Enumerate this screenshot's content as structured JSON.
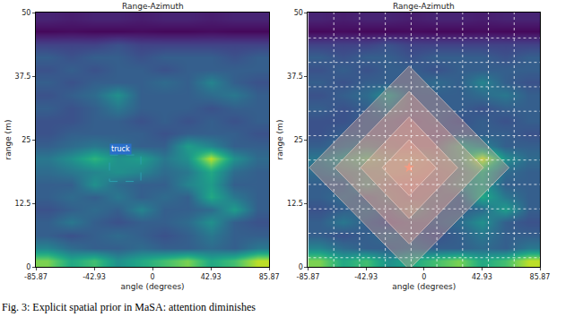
{
  "caption": "Fig. 3: Explicit spatial prior in MaSA: attention diminishes",
  "chart_data": [
    {
      "type": "heatmap",
      "title": "Range-Azimuth",
      "x_label": "angle (degrees)",
      "y_label": "range (m)",
      "color": "Viridis",
      "zlim": [
        0,
        1
      ],
      "xlim": [
        -85.87,
        85.87
      ],
      "xticks": [
        -85.87,
        -42.93,
        0,
        42.93,
        85.87
      ],
      "ylim": [
        0,
        50
      ],
      "yticks": [
        0,
        12.5,
        25,
        37.5,
        50
      ],
      "x": [
        -77.28,
        -60.11,
        -42.93,
        -25.76,
        -8.59,
        8.59,
        25.76,
        42.93,
        60.11,
        77.28
      ],
      "y": [
        1.25,
        3.75,
        6.25,
        8.75,
        11.25,
        13.75,
        16.25,
        18.75,
        21.25,
        23.75,
        26.25,
        28.75,
        31.25,
        33.75,
        36.25,
        38.75,
        41.25,
        43.75,
        46.25,
        48.75
      ],
      "cells": [
        [
          0.8,
          0.6,
          0.7,
          0.5,
          0.6,
          0.7,
          0.8,
          0.6,
          0.7,
          0.9
        ],
        [
          0.45,
          0.35,
          0.3,
          0.3,
          0.35,
          0.3,
          0.3,
          0.35,
          0.3,
          0.4
        ],
        [
          0.3,
          0.25,
          0.3,
          0.35,
          0.3,
          0.25,
          0.3,
          0.4,
          0.3,
          0.3
        ],
        [
          0.3,
          0.4,
          0.3,
          0.25,
          0.3,
          0.3,
          0.35,
          0.5,
          0.3,
          0.25
        ],
        [
          0.25,
          0.3,
          0.35,
          0.3,
          0.45,
          0.3,
          0.3,
          0.35,
          0.55,
          0.3
        ],
        [
          0.3,
          0.35,
          0.3,
          0.4,
          0.3,
          0.35,
          0.3,
          0.6,
          0.4,
          0.3
        ],
        [
          0.3,
          0.3,
          0.5,
          0.35,
          0.3,
          0.3,
          0.45,
          0.55,
          0.3,
          0.3
        ],
        [
          0.35,
          0.4,
          0.45,
          0.5,
          0.45,
          0.35,
          0.4,
          0.6,
          0.35,
          0.3
        ],
        [
          0.4,
          0.5,
          0.65,
          0.5,
          0.55,
          0.4,
          0.5,
          0.9,
          0.5,
          0.35
        ],
        [
          0.3,
          0.35,
          0.4,
          0.35,
          0.3,
          0.3,
          0.55,
          0.45,
          0.3,
          0.3
        ],
        [
          0.25,
          0.3,
          0.3,
          0.3,
          0.3,
          0.25,
          0.3,
          0.3,
          0.3,
          0.25
        ],
        [
          0.25,
          0.25,
          0.3,
          0.3,
          0.25,
          0.3,
          0.25,
          0.3,
          0.25,
          0.3
        ],
        [
          0.3,
          0.25,
          0.3,
          0.4,
          0.3,
          0.3,
          0.3,
          0.25,
          0.3,
          0.3
        ],
        [
          0.25,
          0.3,
          0.35,
          0.5,
          0.3,
          0.3,
          0.3,
          0.35,
          0.4,
          0.3
        ],
        [
          0.3,
          0.25,
          0.3,
          0.3,
          0.3,
          0.35,
          0.3,
          0.45,
          0.3,
          0.25
        ],
        [
          0.25,
          0.3,
          0.25,
          0.3,
          0.3,
          0.25,
          0.3,
          0.3,
          0.3,
          0.3
        ],
        [
          0.3,
          0.25,
          0.3,
          0.3,
          0.25,
          0.3,
          0.3,
          0.3,
          0.25,
          0.3
        ],
        [
          0.2,
          0.2,
          0.2,
          0.25,
          0.2,
          0.2,
          0.2,
          0.2,
          0.2,
          0.2
        ],
        [
          0.02,
          0.03,
          0.02,
          0.02,
          0.03,
          0.02,
          0.02,
          0.03,
          0.02,
          0.02
        ],
        [
          0.1,
          0.08,
          0.1,
          0.1,
          0.08,
          0.1,
          0.1,
          0.08,
          0.1,
          0.1
        ]
      ],
      "boxes": [
        {
          "text": "truck",
          "x0": -31.7,
          "x1": -8.6,
          "y0": 16.8,
          "y1": 22
        }
      ]
    },
    {
      "type": "heatmap",
      "title": "Range-Azimuth",
      "x_label": "angle (degrees)",
      "y_label": "range (m)",
      "color": "Viridis",
      "zlim": [
        0,
        1
      ],
      "xlim": [
        -85.87,
        85.87
      ],
      "xticks": [
        -85.87,
        -42.93,
        0,
        42.93,
        85.87
      ],
      "ylim": [
        0,
        50
      ],
      "yticks": [
        0,
        12.5,
        25,
        37.5,
        50
      ],
      "x": [
        -77.28,
        -60.11,
        -42.93,
        -25.76,
        -8.59,
        8.59,
        25.76,
        42.93,
        60.11,
        77.28
      ],
      "y": [
        1.25,
        3.75,
        6.25,
        8.75,
        11.25,
        13.75,
        16.25,
        18.75,
        21.25,
        23.75,
        26.25,
        28.75,
        31.25,
        33.75,
        36.25,
        38.75,
        41.25,
        43.75,
        46.25,
        48.75
      ],
      "cells": [
        [
          0.8,
          0.6,
          0.7,
          0.5,
          0.6,
          0.7,
          0.8,
          0.6,
          0.7,
          0.9
        ],
        [
          0.45,
          0.35,
          0.3,
          0.3,
          0.35,
          0.3,
          0.3,
          0.35,
          0.3,
          0.4
        ],
        [
          0.3,
          0.25,
          0.3,
          0.35,
          0.3,
          0.25,
          0.3,
          0.4,
          0.3,
          0.3
        ],
        [
          0.3,
          0.4,
          0.3,
          0.25,
          0.3,
          0.3,
          0.35,
          0.5,
          0.3,
          0.25
        ],
        [
          0.25,
          0.3,
          0.35,
          0.3,
          0.45,
          0.3,
          0.3,
          0.35,
          0.55,
          0.3
        ],
        [
          0.3,
          0.35,
          0.3,
          0.4,
          0.3,
          0.35,
          0.3,
          0.6,
          0.4,
          0.3
        ],
        [
          0.3,
          0.3,
          0.5,
          0.35,
          0.3,
          0.3,
          0.45,
          0.55,
          0.3,
          0.3
        ],
        [
          0.35,
          0.4,
          0.45,
          0.5,
          0.45,
          0.35,
          0.4,
          0.6,
          0.35,
          0.3
        ],
        [
          0.4,
          0.5,
          0.65,
          0.5,
          0.55,
          0.4,
          0.5,
          0.9,
          0.5,
          0.35
        ],
        [
          0.3,
          0.35,
          0.4,
          0.35,
          0.3,
          0.3,
          0.55,
          0.45,
          0.3,
          0.3
        ],
        [
          0.25,
          0.3,
          0.3,
          0.3,
          0.3,
          0.25,
          0.3,
          0.3,
          0.3,
          0.25
        ],
        [
          0.25,
          0.25,
          0.3,
          0.3,
          0.25,
          0.3,
          0.25,
          0.3,
          0.25,
          0.3
        ],
        [
          0.3,
          0.25,
          0.3,
          0.4,
          0.3,
          0.3,
          0.3,
          0.25,
          0.3,
          0.3
        ],
        [
          0.25,
          0.3,
          0.35,
          0.5,
          0.3,
          0.3,
          0.3,
          0.35,
          0.4,
          0.3
        ],
        [
          0.3,
          0.25,
          0.3,
          0.3,
          0.3,
          0.35,
          0.3,
          0.45,
          0.3,
          0.25
        ],
        [
          0.25,
          0.3,
          0.25,
          0.3,
          0.3,
          0.25,
          0.3,
          0.3,
          0.3,
          0.3
        ],
        [
          0.3,
          0.25,
          0.3,
          0.3,
          0.25,
          0.3,
          0.3,
          0.3,
          0.25,
          0.3
        ],
        [
          0.2,
          0.2,
          0.2,
          0.25,
          0.2,
          0.2,
          0.2,
          0.2,
          0.2,
          0.2
        ],
        [
          0.02,
          0.03,
          0.02,
          0.02,
          0.03,
          0.02,
          0.02,
          0.03,
          0.02,
          0.02
        ],
        [
          0.1,
          0.08,
          0.1,
          0.1,
          0.08,
          0.1,
          0.1,
          0.08,
          0.1,
          0.1
        ]
      ],
      "patch_grid": {
        "x": [
          -66.79,
          -47.71,
          -28.63,
          -9.54,
          9.54,
          28.63,
          47.71,
          66.79
        ],
        "y": [
          1.8,
          6.6,
          11.4,
          16.2,
          21,
          25.8,
          30.6,
          35.4,
          40.2,
          45
        ]
      },
      "attention_center": {
        "x": -11,
        "y": 19.5,
        "marker": "star"
      },
      "attention_regions": [
        {
          "half_width": 74,
          "half_height": 20
        },
        {
          "half_width": 55,
          "half_height": 15
        },
        {
          "half_width": 36,
          "half_height": 10
        },
        {
          "half_width": 20,
          "half_height": 5.5
        }
      ]
    }
  ]
}
